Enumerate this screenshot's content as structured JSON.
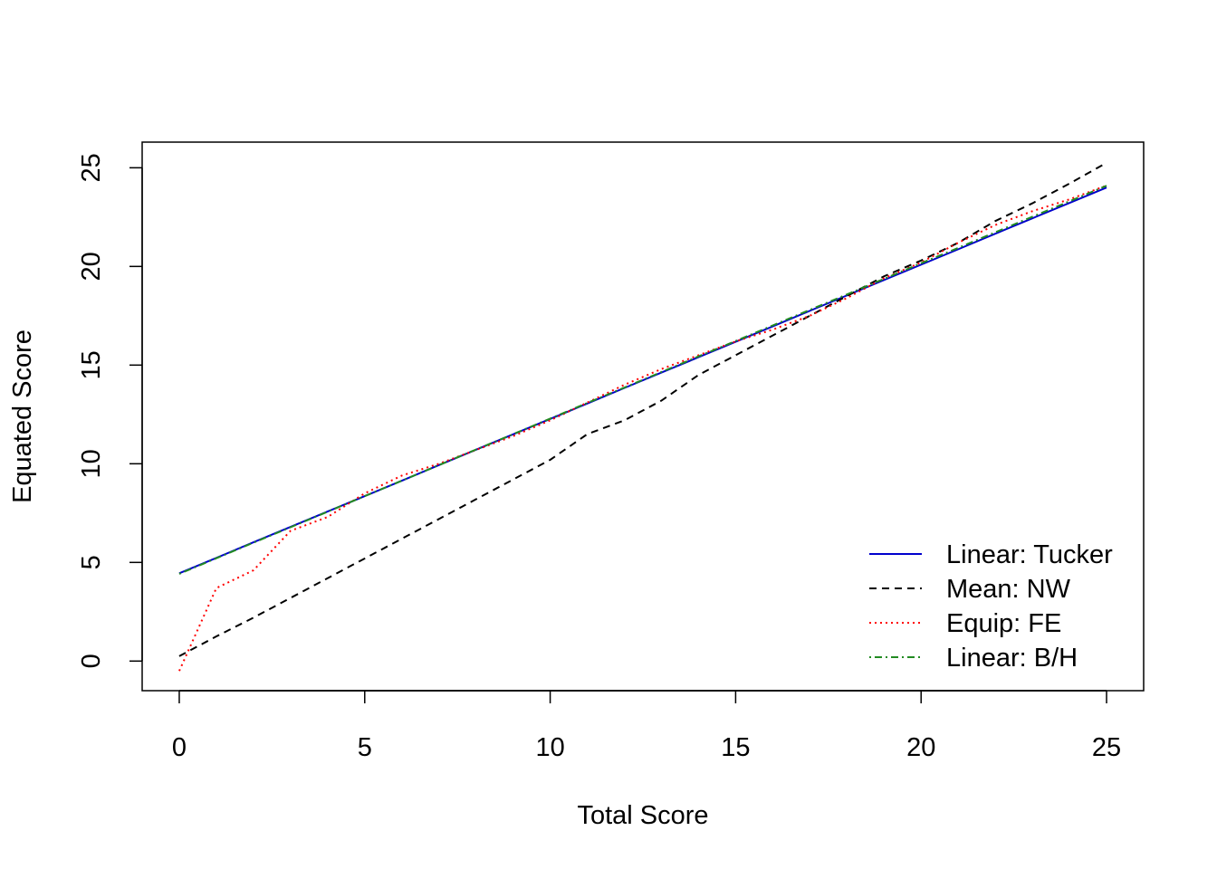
{
  "chart_data": {
    "type": "line",
    "title": "",
    "xlabel": "Total Score",
    "ylabel": "Equated Score",
    "xlim": [
      -1,
      26
    ],
    "ylim": [
      -1.5,
      26.3
    ],
    "x_ticks": [
      0,
      5,
      10,
      15,
      20,
      25
    ],
    "y_ticks": [
      0,
      5,
      10,
      15,
      20,
      25
    ],
    "grid": false,
    "legend_position": "bottom-right",
    "x": [
      0,
      1,
      2,
      3,
      4,
      5,
      6,
      7,
      8,
      9,
      10,
      11,
      12,
      13,
      14,
      15,
      16,
      17,
      18,
      19,
      20,
      21,
      22,
      23,
      24,
      25
    ],
    "series": [
      {
        "name": "Linear: Tucker",
        "color": "#0000cd",
        "dash": "solid",
        "values": [
          4.45,
          5.23,
          6.02,
          6.8,
          7.58,
          8.36,
          9.14,
          9.93,
          10.71,
          11.49,
          12.27,
          13.05,
          13.84,
          14.62,
          15.4,
          16.18,
          16.96,
          17.75,
          18.53,
          19.31,
          20.09,
          20.87,
          21.66,
          22.44,
          23.22,
          24.0
        ]
      },
      {
        "name": "Mean: NW",
        "color": "#000000",
        "dash": "dashed",
        "values": [
          0.25,
          1.25,
          2.2,
          3.2,
          4.2,
          5.2,
          6.2,
          7.2,
          8.2,
          9.2,
          10.2,
          11.5,
          12.2,
          13.2,
          14.5,
          15.5,
          16.5,
          17.5,
          18.5,
          19.5,
          20.3,
          21.2,
          22.3,
          23.2,
          24.2,
          25.25
        ]
      },
      {
        "name": "Equip: FE",
        "color": "#ff0000",
        "dash": "dotted",
        "values": [
          -0.5,
          3.7,
          4.6,
          6.6,
          7.3,
          8.5,
          9.4,
          10.0,
          10.7,
          11.4,
          12.2,
          13.1,
          14.0,
          14.8,
          15.5,
          16.2,
          16.8,
          17.5,
          18.4,
          19.4,
          20.2,
          21.2,
          22.1,
          22.8,
          23.4,
          24.1
        ]
      },
      {
        "name": "Linear: B/H",
        "color": "#228b22",
        "dash": "dotdash",
        "values": [
          4.42,
          5.21,
          6.0,
          6.78,
          7.57,
          8.36,
          9.14,
          9.93,
          10.72,
          11.5,
          12.29,
          13.08,
          13.86,
          14.65,
          15.44,
          16.22,
          17.01,
          17.8,
          18.58,
          19.37,
          20.16,
          20.94,
          21.73,
          22.52,
          23.3,
          24.09
        ]
      }
    ]
  }
}
